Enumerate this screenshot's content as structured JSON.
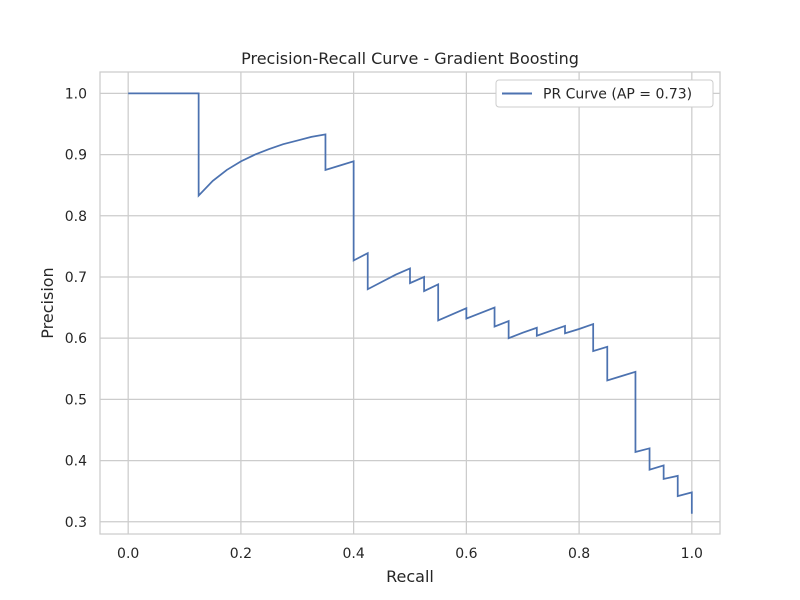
{
  "chart_data": {
    "type": "line",
    "title": "Precision-Recall Curve - Gradient Boosting",
    "xlabel": "Recall",
    "ylabel": "Precision",
    "xlim": [
      -0.05,
      1.05
    ],
    "ylim": [
      0.28,
      1.035
    ],
    "xticks": [
      0.0,
      0.2,
      0.4,
      0.6,
      0.8,
      1.0
    ],
    "yticks": [
      0.3,
      0.4,
      0.5,
      0.6,
      0.7,
      0.8,
      0.9,
      1.0
    ],
    "xtick_labels": [
      "0.0",
      "0.2",
      "0.4",
      "0.6",
      "0.8",
      "1.0"
    ],
    "ytick_labels": [
      "0.3",
      "0.4",
      "0.5",
      "0.6",
      "0.7",
      "0.8",
      "0.9",
      "1.0"
    ],
    "grid": true,
    "legend_position": "top-right",
    "colors": {
      "series": "#4c72b0",
      "grid": "#cccccc",
      "frame": "#cccccc",
      "text": "#262626"
    },
    "series": [
      {
        "name": "PR Curve (AP = 0.73)",
        "x": [
          0.0,
          0.125,
          0.125,
          0.15,
          0.175,
          0.2,
          0.225,
          0.25,
          0.275,
          0.3,
          0.325,
          0.35,
          0.35,
          0.375,
          0.4,
          0.4,
          0.425,
          0.425,
          0.45,
          0.475,
          0.5,
          0.5,
          0.525,
          0.525,
          0.55,
          0.55,
          0.575,
          0.6,
          0.6,
          0.625,
          0.65,
          0.65,
          0.675,
          0.675,
          0.7,
          0.725,
          0.725,
          0.75,
          0.775,
          0.775,
          0.8,
          0.825,
          0.825,
          0.85,
          0.85,
          0.875,
          0.9,
          0.9,
          0.925,
          0.925,
          0.95,
          0.95,
          0.975,
          0.975,
          1.0,
          1.0
        ],
        "y": [
          1.0,
          1.0,
          0.833,
          0.857,
          0.875,
          0.889,
          0.9,
          0.909,
          0.917,
          0.923,
          0.929,
          0.933,
          0.875,
          0.882,
          0.889,
          0.727,
          0.739,
          0.68,
          0.692,
          0.704,
          0.714,
          0.69,
          0.7,
          0.677,
          0.688,
          0.629,
          0.639,
          0.649,
          0.632,
          0.641,
          0.65,
          0.619,
          0.628,
          0.6,
          0.609,
          0.617,
          0.604,
          0.612,
          0.62,
          0.608,
          0.615,
          0.623,
          0.579,
          0.586,
          0.531,
          0.538,
          0.545,
          0.414,
          0.42,
          0.385,
          0.392,
          0.37,
          0.375,
          0.342,
          0.348,
          0.313
        ]
      }
    ]
  }
}
